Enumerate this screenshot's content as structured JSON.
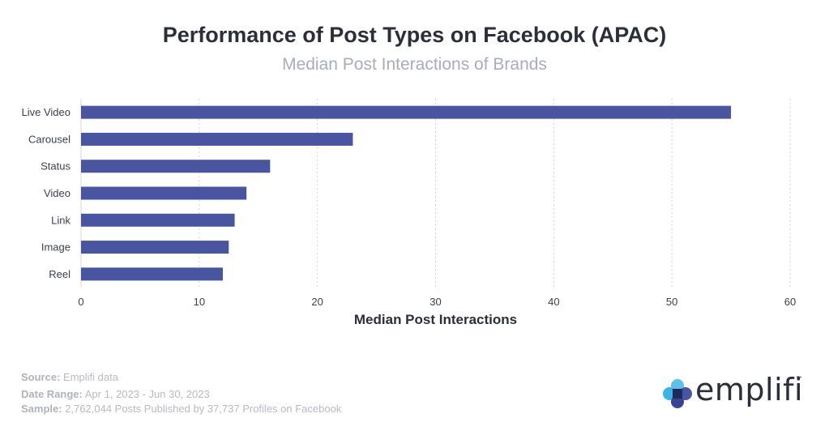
{
  "chart_data": {
    "type": "bar",
    "orientation": "horizontal",
    "title": "Performance of Post Types on Facebook (APAC)",
    "subtitle": "Median Post Interactions of Brands",
    "xlabel": "Median Post Interactions",
    "ylabel": "",
    "categories": [
      "Live Video",
      "Carousel",
      "Status",
      "Video",
      "Link",
      "Image",
      "Reel"
    ],
    "values": [
      55,
      23,
      16,
      14,
      13,
      12.5,
      12
    ],
    "xlim": [
      0,
      60
    ],
    "xticks": [
      "0",
      "10",
      "20",
      "30",
      "40",
      "50",
      "60"
    ],
    "grid": "vertical dotted",
    "legend": "none",
    "bar_color": "#4a55a2"
  },
  "footer": {
    "source_label": "Source:",
    "source_value": "Emplifi data",
    "range_label": "Date Range:",
    "range_value": "Apr 1, 2023 - Jun 30, 2023",
    "sample_label": "Sample:",
    "sample_value": "2,762,044 Posts Published by 37,737 Profiles on Facebook"
  },
  "logo": {
    "text": "emplifi",
    "tm": "™"
  }
}
